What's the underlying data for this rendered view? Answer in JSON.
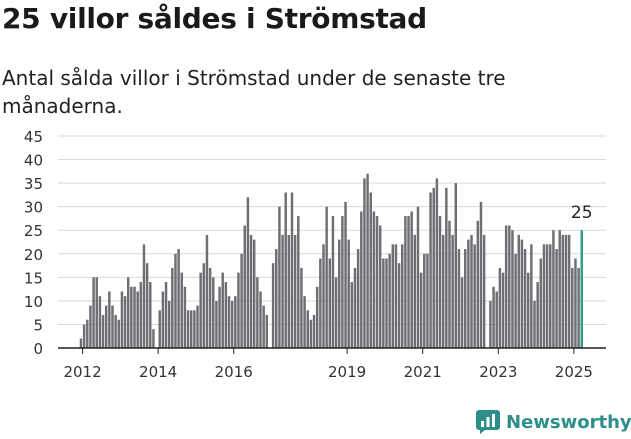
{
  "header": {
    "title": "25 villor såldes i Strömstad",
    "subtitle": "Antal sålda villor i Strömstad under de senaste tre månaderna."
  },
  "brand": {
    "name": "Newsworthy",
    "color": "#2d8f8a"
  },
  "colors": {
    "bar": "#6e6e73",
    "highlight": "#2a9d8f",
    "grid": "#d9d9d9",
    "axis": "#222222"
  },
  "chart_data": {
    "type": "bar",
    "y_ticks": [
      0,
      5,
      10,
      15,
      20,
      25,
      30,
      35,
      40,
      45
    ],
    "ylim": [
      0,
      45
    ],
    "x_range": [
      2011.35,
      2025.85
    ],
    "x_ticks": [
      {
        "label": "2012",
        "x": 2012.0
      },
      {
        "label": "2014",
        "x": 2014.0
      },
      {
        "label": "2016",
        "x": 2016.0
      },
      {
        "label": "2019",
        "x": 2019.0
      },
      {
        "label": "2021",
        "x": 2021.0
      },
      {
        "label": "2023",
        "x": 2023.0
      },
      {
        "label": "2025",
        "x": 2025.0
      }
    ],
    "start_month": "2011-12",
    "highlight_label": "25",
    "values": [
      2,
      5,
      6,
      9,
      15,
      15,
      11,
      7,
      9,
      12,
      9,
      7,
      6,
      12,
      11,
      15,
      13,
      13,
      12,
      14,
      22,
      18,
      14,
      4,
      0,
      8,
      12,
      14,
      10,
      17,
      20,
      21,
      16,
      13,
      8,
      8,
      8,
      9,
      16,
      18,
      24,
      17,
      15,
      10,
      13,
      16,
      14,
      11,
      10,
      11,
      16,
      20,
      26,
      32,
      24,
      23,
      15,
      12,
      9,
      7,
      0,
      18,
      21,
      30,
      24,
      33,
      24,
      33,
      24,
      28,
      17,
      11,
      8,
      6,
      7,
      13,
      19,
      22,
      30,
      19,
      28,
      15,
      23,
      28,
      31,
      23,
      14,
      17,
      21,
      29,
      36,
      37,
      33,
      29,
      28,
      26,
      19,
      19,
      20,
      22,
      22,
      18,
      22,
      28,
      28,
      29,
      24,
      30,
      16,
      20,
      20,
      33,
      34,
      36,
      28,
      24,
      34,
      27,
      24,
      35,
      21,
      15,
      21,
      23,
      24,
      22,
      27,
      31,
      24,
      0,
      10,
      13,
      12,
      17,
      16,
      26,
      26,
      25,
      20,
      24,
      23,
      21,
      16,
      22,
      10,
      14,
      19,
      22,
      22,
      22,
      25,
      21,
      25,
      24,
      24,
      24,
      17,
      19,
      17,
      25
    ]
  }
}
